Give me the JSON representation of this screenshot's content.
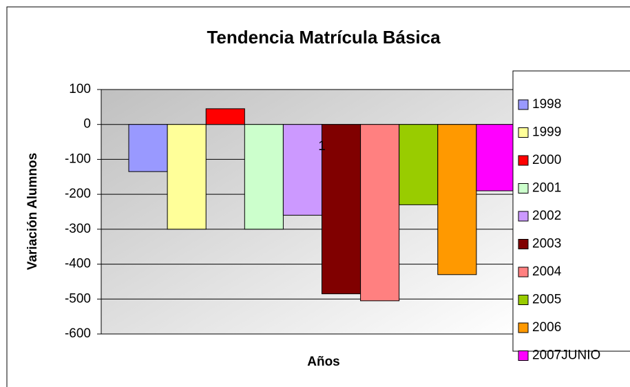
{
  "chart_data": {
    "type": "bar",
    "title": "Tendencia Matrícula Básica",
    "xlabel": "Años",
    "ylabel": "Variación Alumnos",
    "categories": [
      "1"
    ],
    "series": [
      {
        "name": "1998",
        "color": "#9999ff",
        "values": [
          -135
        ]
      },
      {
        "name": "1999",
        "color": "#ffff99",
        "values": [
          -300
        ]
      },
      {
        "name": "2000",
        "color": "#ff0000",
        "values": [
          45
        ]
      },
      {
        "name": "2001",
        "color": "#ccffcc",
        "values": [
          -300
        ]
      },
      {
        "name": "2002",
        "color": "#cc99ff",
        "values": [
          -260
        ]
      },
      {
        "name": "2003",
        "color": "#800000",
        "values": [
          -485
        ]
      },
      {
        "name": "2004",
        "color": "#ff8080",
        "values": [
          -505
        ]
      },
      {
        "name": "2005",
        "color": "#99cc00",
        "values": [
          -230
        ]
      },
      {
        "name": "2006",
        "color": "#ff9900",
        "values": [
          -430
        ]
      },
      {
        "name": "2007JUNIO",
        "color": "#ff00ff",
        "values": [
          -190
        ]
      }
    ],
    "ylim": [
      -600,
      100
    ],
    "yticks": [
      -600,
      -500,
      -400,
      -300,
      -200,
      -100,
      0,
      100
    ],
    "grid": true,
    "legend": "right"
  }
}
